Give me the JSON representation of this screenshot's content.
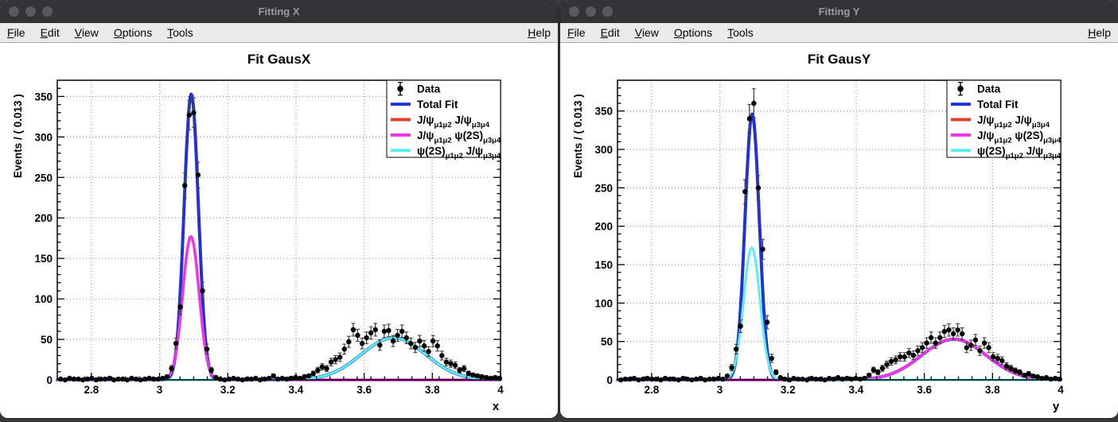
{
  "colors": {
    "total_fit": "#1e32d8",
    "jpsi_jpsi": "#e83b28",
    "jpsi_psi2s": "#ee34e4",
    "psi2s_jpsi": "#5aeef0",
    "data_marker": "#000000",
    "error_bar": "#444444",
    "grid": "#8a8a8a",
    "frame": "#000000",
    "titlebar_bg": "#343436",
    "titlebar_text": "#9c9ca0",
    "menubar_bg": "#ebebeb"
  },
  "legend": {
    "entries": [
      {
        "kind": "marker",
        "color_key": "data_marker",
        "parts": [
          {
            "t": "Data"
          }
        ]
      },
      {
        "kind": "line",
        "color_key": "total_fit",
        "parts": [
          {
            "t": "Total Fit"
          }
        ]
      },
      {
        "kind": "line",
        "color_key": "jpsi_jpsi",
        "parts": [
          {
            "t": "J/ψ"
          },
          {
            "sub": "μ1μ2"
          },
          {
            "t": " J/ψ"
          },
          {
            "sub": "μ3μ4"
          }
        ]
      },
      {
        "kind": "line",
        "color_key": "jpsi_psi2s",
        "parts": [
          {
            "t": "J/ψ"
          },
          {
            "sub": "μ1μ2"
          },
          {
            "t": " ψ(2S)"
          },
          {
            "sub": "μ3μ4"
          }
        ]
      },
      {
        "kind": "line",
        "color_key": "psi2s_jpsi",
        "parts": [
          {
            "t": "ψ(2S)"
          },
          {
            "sub": "μ1μ2"
          },
          {
            "t": " J/ψ"
          },
          {
            "sub": "μ3μ4"
          }
        ]
      }
    ]
  },
  "windows": [
    {
      "window_title": "Fitting X",
      "menu": {
        "left": [
          "File",
          "Edit",
          "View",
          "Options",
          "Tools"
        ],
        "right": [
          "Help"
        ]
      },
      "chart_data": {
        "type": "line",
        "title": "Fit GausX",
        "xlabel": "x",
        "ylabel": "Events / ( 0.013 )",
        "xlim": [
          2.7,
          4.0
        ],
        "ylim": [
          0,
          370
        ],
        "xticks": [
          2.8,
          3.0,
          3.2,
          3.4,
          3.6,
          3.8,
          4.0
        ],
        "yticks": [
          0,
          50,
          100,
          150,
          200,
          250,
          300,
          350
        ],
        "minor_x_step": 0.04,
        "minor_y_step": 10,
        "grid": "dotted",
        "legend_position": "top-right",
        "curves": [
          {
            "name": "jpsi-jpsi",
            "color_key": "jpsi_jpsi",
            "width": 2.5,
            "gaussians": []
          },
          {
            "name": "total-fit",
            "color_key": "total_fit",
            "width": 4,
            "gaussians": [
              {
                "amp": 353,
                "mean": 3.093,
                "sigma": 0.021
              },
              {
                "amp": 52,
                "mean": 3.686,
                "sigma": 0.094
              }
            ]
          },
          {
            "name": "jpsi-psi2s",
            "color_key": "jpsi_psi2s",
            "width": 3.5,
            "gaussians": [
              {
                "amp": 177,
                "mean": 3.092,
                "sigma": 0.024
              }
            ]
          },
          {
            "name": "psi2s-jpsi",
            "color_key": "psi2s_jpsi",
            "width": 3,
            "gaussians": [
              {
                "amp": 52,
                "mean": 3.686,
                "sigma": 0.094
              }
            ]
          }
        ],
        "errors": "poisson_sqrt",
        "marker": "filled-circle",
        "data_points": [
          [
            2.71,
            1
          ],
          [
            2.723,
            0
          ],
          [
            2.736,
            2
          ],
          [
            2.749,
            1
          ],
          [
            2.762,
            1
          ],
          [
            2.775,
            0
          ],
          [
            2.788,
            1
          ],
          [
            2.801,
            2
          ],
          [
            2.814,
            0
          ],
          [
            2.827,
            1
          ],
          [
            2.84,
            1
          ],
          [
            2.853,
            2
          ],
          [
            2.866,
            0
          ],
          [
            2.879,
            1
          ],
          [
            2.892,
            1
          ],
          [
            2.905,
            0
          ],
          [
            2.918,
            2
          ],
          [
            2.931,
            1
          ],
          [
            2.944,
            0
          ],
          [
            2.957,
            1
          ],
          [
            2.97,
            2
          ],
          [
            2.983,
            1
          ],
          [
            2.996,
            1
          ],
          [
            3.009,
            2
          ],
          [
            3.022,
            4
          ],
          [
            3.035,
            14
          ],
          [
            3.048,
            45
          ],
          [
            3.061,
            90
          ],
          [
            3.074,
            240
          ],
          [
            3.087,
            327
          ],
          [
            3.1,
            330
          ],
          [
            3.113,
            253
          ],
          [
            3.126,
            110
          ],
          [
            3.139,
            38
          ],
          [
            3.152,
            12
          ],
          [
            3.165,
            3
          ],
          [
            3.178,
            1
          ],
          [
            3.191,
            0
          ],
          [
            3.204,
            1
          ],
          [
            3.217,
            2
          ],
          [
            3.23,
            1
          ],
          [
            3.243,
            0
          ],
          [
            3.256,
            1
          ],
          [
            3.269,
            1
          ],
          [
            3.282,
            2
          ],
          [
            3.295,
            0
          ],
          [
            3.308,
            1
          ],
          [
            3.321,
            2
          ],
          [
            3.334,
            5
          ],
          [
            3.347,
            1
          ],
          [
            3.36,
            2
          ],
          [
            3.373,
            1
          ],
          [
            3.386,
            2
          ],
          [
            3.399,
            3
          ],
          [
            3.412,
            2
          ],
          [
            3.425,
            4
          ],
          [
            3.438,
            5
          ],
          [
            3.451,
            8
          ],
          [
            3.464,
            12
          ],
          [
            3.477,
            16
          ],
          [
            3.49,
            14
          ],
          [
            3.503,
            22
          ],
          [
            3.516,
            25
          ],
          [
            3.529,
            28
          ],
          [
            3.542,
            38
          ],
          [
            3.555,
            47
          ],
          [
            3.568,
            62
          ],
          [
            3.581,
            55
          ],
          [
            3.594,
            45
          ],
          [
            3.607,
            52
          ],
          [
            3.62,
            58
          ],
          [
            3.633,
            62
          ],
          [
            3.646,
            43
          ],
          [
            3.659,
            60
          ],
          [
            3.672,
            61
          ],
          [
            3.685,
            48
          ],
          [
            3.698,
            55
          ],
          [
            3.711,
            60
          ],
          [
            3.724,
            52
          ],
          [
            3.737,
            45
          ],
          [
            3.75,
            40
          ],
          [
            3.763,
            48
          ],
          [
            3.776,
            42
          ],
          [
            3.789,
            35
          ],
          [
            3.802,
            48
          ],
          [
            3.815,
            42
          ],
          [
            3.828,
            30
          ],
          [
            3.841,
            22
          ],
          [
            3.854,
            20
          ],
          [
            3.867,
            18
          ],
          [
            3.88,
            12
          ],
          [
            3.893,
            14
          ],
          [
            3.906,
            8
          ],
          [
            3.919,
            6
          ],
          [
            3.932,
            5
          ],
          [
            3.945,
            4
          ],
          [
            3.958,
            3
          ],
          [
            3.971,
            2
          ],
          [
            3.984,
            3
          ],
          [
            3.997,
            2
          ]
        ]
      }
    },
    {
      "window_title": "Fitting Y",
      "menu": {
        "left": [
          "File",
          "Edit",
          "View",
          "Options",
          "Tools"
        ],
        "right": [
          "Help"
        ]
      },
      "chart_data": {
        "type": "line",
        "title": "Fit GausY",
        "xlabel": "y",
        "ylabel": "Events / ( 0.013 )",
        "xlim": [
          2.7,
          4.0
        ],
        "ylim": [
          0,
          390
        ],
        "xticks": [
          2.8,
          3.0,
          3.2,
          3.4,
          3.6,
          3.8,
          4.0
        ],
        "yticks": [
          0,
          50,
          100,
          150,
          200,
          250,
          300,
          350
        ],
        "minor_x_step": 0.04,
        "minor_y_step": 10,
        "grid": "dotted",
        "legend_position": "top-right",
        "curves": [
          {
            "name": "jpsi-jpsi",
            "color_key": "jpsi_jpsi",
            "width": 2.5,
            "gaussians": []
          },
          {
            "name": "total-fit",
            "color_key": "total_fit",
            "width": 4,
            "gaussians": [
              {
                "amp": 346,
                "mean": 3.095,
                "sigma": 0.021
              },
              {
                "amp": 53,
                "mean": 3.687,
                "sigma": 0.094
              }
            ]
          },
          {
            "name": "jpsi-psi2s",
            "color_key": "jpsi_psi2s",
            "width": 3.5,
            "gaussians": [
              {
                "amp": 53,
                "mean": 3.687,
                "sigma": 0.094
              }
            ]
          },
          {
            "name": "psi2s-jpsi",
            "color_key": "psi2s_jpsi",
            "width": 3,
            "gaussians": [
              {
                "amp": 172,
                "mean": 3.094,
                "sigma": 0.024
              }
            ]
          }
        ],
        "errors": "poisson_sqrt",
        "marker": "filled-circle",
        "data_points": [
          [
            2.71,
            0
          ],
          [
            2.723,
            1
          ],
          [
            2.736,
            1
          ],
          [
            2.749,
            2
          ],
          [
            2.762,
            0
          ],
          [
            2.775,
            1
          ],
          [
            2.788,
            2
          ],
          [
            2.801,
            1
          ],
          [
            2.814,
            1
          ],
          [
            2.827,
            0
          ],
          [
            2.84,
            2
          ],
          [
            2.853,
            1
          ],
          [
            2.866,
            1
          ],
          [
            2.879,
            0
          ],
          [
            2.892,
            2
          ],
          [
            2.905,
            1
          ],
          [
            2.918,
            0
          ],
          [
            2.931,
            1
          ],
          [
            2.944,
            2
          ],
          [
            2.957,
            0
          ],
          [
            2.97,
            1
          ],
          [
            2.983,
            1
          ],
          [
            2.996,
            2
          ],
          [
            3.009,
            1
          ],
          [
            3.022,
            5
          ],
          [
            3.035,
            16
          ],
          [
            3.048,
            40
          ],
          [
            3.061,
            70
          ],
          [
            3.074,
            245
          ],
          [
            3.087,
            340
          ],
          [
            3.1,
            360
          ],
          [
            3.113,
            250
          ],
          [
            3.126,
            170
          ],
          [
            3.139,
            75
          ],
          [
            3.152,
            28
          ],
          [
            3.165,
            10
          ],
          [
            3.178,
            3
          ],
          [
            3.191,
            1
          ],
          [
            3.204,
            0
          ],
          [
            3.217,
            2
          ],
          [
            3.23,
            1
          ],
          [
            3.243,
            1
          ],
          [
            3.256,
            0
          ],
          [
            3.269,
            2
          ],
          [
            3.282,
            1
          ],
          [
            3.295,
            1
          ],
          [
            3.308,
            0
          ],
          [
            3.321,
            2
          ],
          [
            3.334,
            1
          ],
          [
            3.347,
            3
          ],
          [
            3.36,
            1
          ],
          [
            3.373,
            2
          ],
          [
            3.386,
            1
          ],
          [
            3.399,
            2
          ],
          [
            3.412,
            1
          ],
          [
            3.425,
            2
          ],
          [
            3.438,
            6
          ],
          [
            3.451,
            13
          ],
          [
            3.464,
            10
          ],
          [
            3.477,
            15
          ],
          [
            3.49,
            20
          ],
          [
            3.503,
            24
          ],
          [
            3.516,
            26
          ],
          [
            3.529,
            30
          ],
          [
            3.542,
            30
          ],
          [
            3.555,
            35
          ],
          [
            3.568,
            32
          ],
          [
            3.581,
            38
          ],
          [
            3.594,
            42
          ],
          [
            3.607,
            48
          ],
          [
            3.62,
            55
          ],
          [
            3.633,
            48
          ],
          [
            3.646,
            55
          ],
          [
            3.659,
            63
          ],
          [
            3.672,
            65
          ],
          [
            3.685,
            60
          ],
          [
            3.698,
            65
          ],
          [
            3.711,
            60
          ],
          [
            3.724,
            42
          ],
          [
            3.737,
            45
          ],
          [
            3.75,
            52
          ],
          [
            3.763,
            38
          ],
          [
            3.776,
            48
          ],
          [
            3.789,
            42
          ],
          [
            3.802,
            30
          ],
          [
            3.815,
            28
          ],
          [
            3.828,
            25
          ],
          [
            3.841,
            18
          ],
          [
            3.854,
            15
          ],
          [
            3.867,
            12
          ],
          [
            3.88,
            10
          ],
          [
            3.893,
            6
          ],
          [
            3.906,
            8
          ],
          [
            3.919,
            5
          ],
          [
            3.932,
            4
          ],
          [
            3.945,
            2
          ],
          [
            3.958,
            3
          ],
          [
            3.971,
            1
          ],
          [
            3.984,
            2
          ],
          [
            3.997,
            1
          ]
        ]
      }
    }
  ]
}
